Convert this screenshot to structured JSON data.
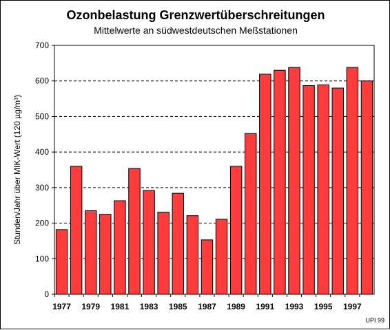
{
  "chart_data": {
    "type": "bar",
    "title": "Ozonbelastung Grenzwertüberschreitungen",
    "subtitle": "Mittelwerte an südwestdeutschen Meßstationen",
    "ylabel": "Stunden/Jahr über MIK-Wert (120 µg/m³)",
    "xlabel": "",
    "credit": "UPI 99",
    "ylim": [
      0,
      700
    ],
    "yticks": [
      0,
      100,
      200,
      300,
      400,
      500,
      600,
      700
    ],
    "grid": true,
    "categories": [
      "1977",
      "1978",
      "1979",
      "1980",
      "1981",
      "1982",
      "1983",
      "1984",
      "1985",
      "1986",
      "1987",
      "1988",
      "1989",
      "1990",
      "1991",
      "1992",
      "1993",
      "1994",
      "1995",
      "1996",
      "1997",
      "1998"
    ],
    "xtick_labels": [
      "1977",
      "1979",
      "1981",
      "1983",
      "1985",
      "1987",
      "1989",
      "1991",
      "1993",
      "1995",
      "1997"
    ],
    "values": [
      182,
      360,
      235,
      225,
      263,
      354,
      292,
      231,
      284,
      221,
      153,
      211,
      360,
      452,
      619,
      630,
      638,
      587,
      589,
      580,
      638,
      600
    ],
    "colors": {
      "bar": "#ff3b3b",
      "edge": "#000000",
      "background": "#ffffff"
    }
  }
}
